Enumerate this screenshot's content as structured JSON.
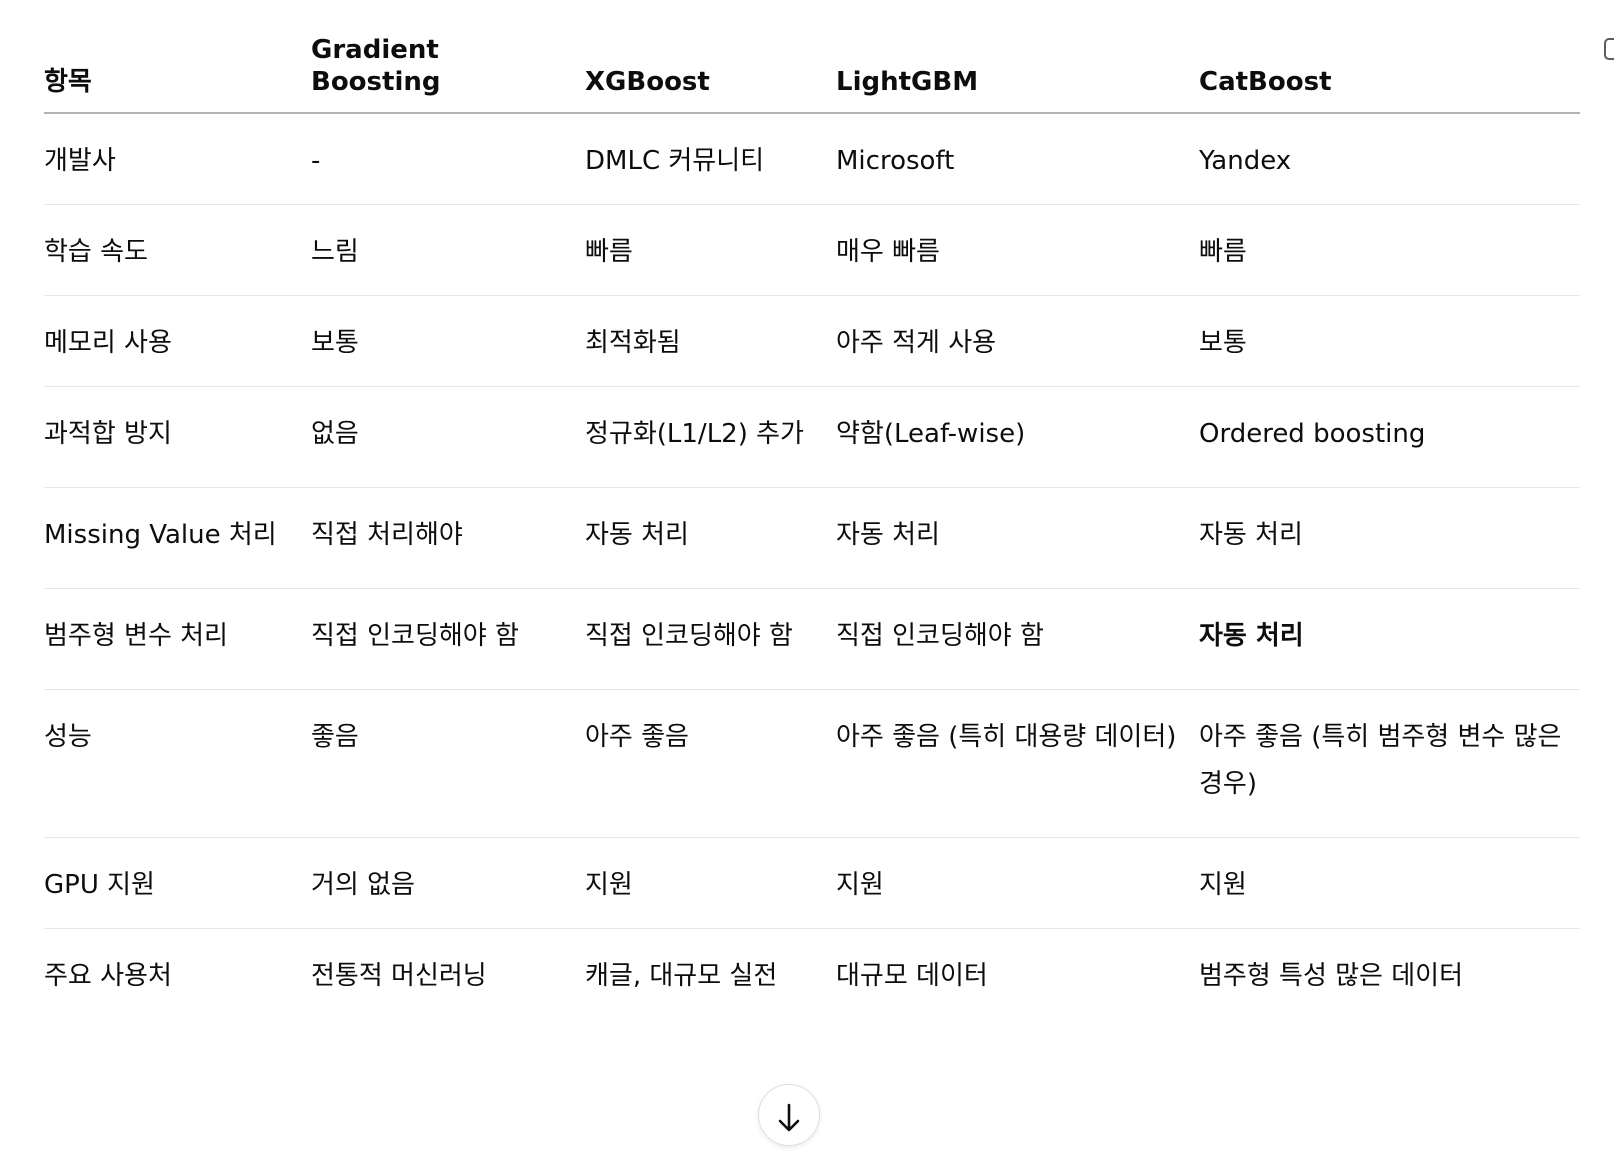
{
  "table": {
    "headers": [
      "항목",
      "Gradient Boosting",
      "XGBoost",
      "LightGBM",
      "CatBoost"
    ],
    "rows": [
      [
        "개발사",
        "-",
        "DMLC 커뮤니티",
        "Microsoft",
        "Yandex"
      ],
      [
        "학습 속도",
        "느림",
        "빠름",
        "매우 빠름",
        "빠름"
      ],
      [
        "메모리 사용",
        "보통",
        "최적화됨",
        "아주 적게 사용",
        "보통"
      ],
      [
        "과적합 방지",
        "없음",
        "정규화(L1/L2) 추가",
        "약함(Leaf-wise)",
        "Ordered boosting"
      ],
      [
        "Missing Value 처리",
        "직접 처리해야",
        "자동 처리",
        "자동 처리",
        "자동 처리"
      ],
      [
        "범주형 변수 처리",
        "직접 인코딩해야 함",
        "직접 인코딩해야 함",
        "직접 인코딩해야 함",
        "자동 처리"
      ],
      [
        "성능",
        "좋음",
        "아주 좋음",
        "아주 좋음 (특히 대용량 데이터)",
        "아주 좋음 (특히 범주형 변수 많은 경우)"
      ],
      [
        "GPU 지원",
        "거의 없음",
        "지원",
        "지원",
        "지원"
      ],
      [
        "주요 사용처",
        "전통적 머신러닝",
        "캐글, 대규모 실전",
        "대규모 데이터",
        "범주형 특성 많은 데이터"
      ]
    ]
  },
  "icons": {
    "copy": "copy-icon",
    "scroll_down": "arrow-down-icon"
  }
}
